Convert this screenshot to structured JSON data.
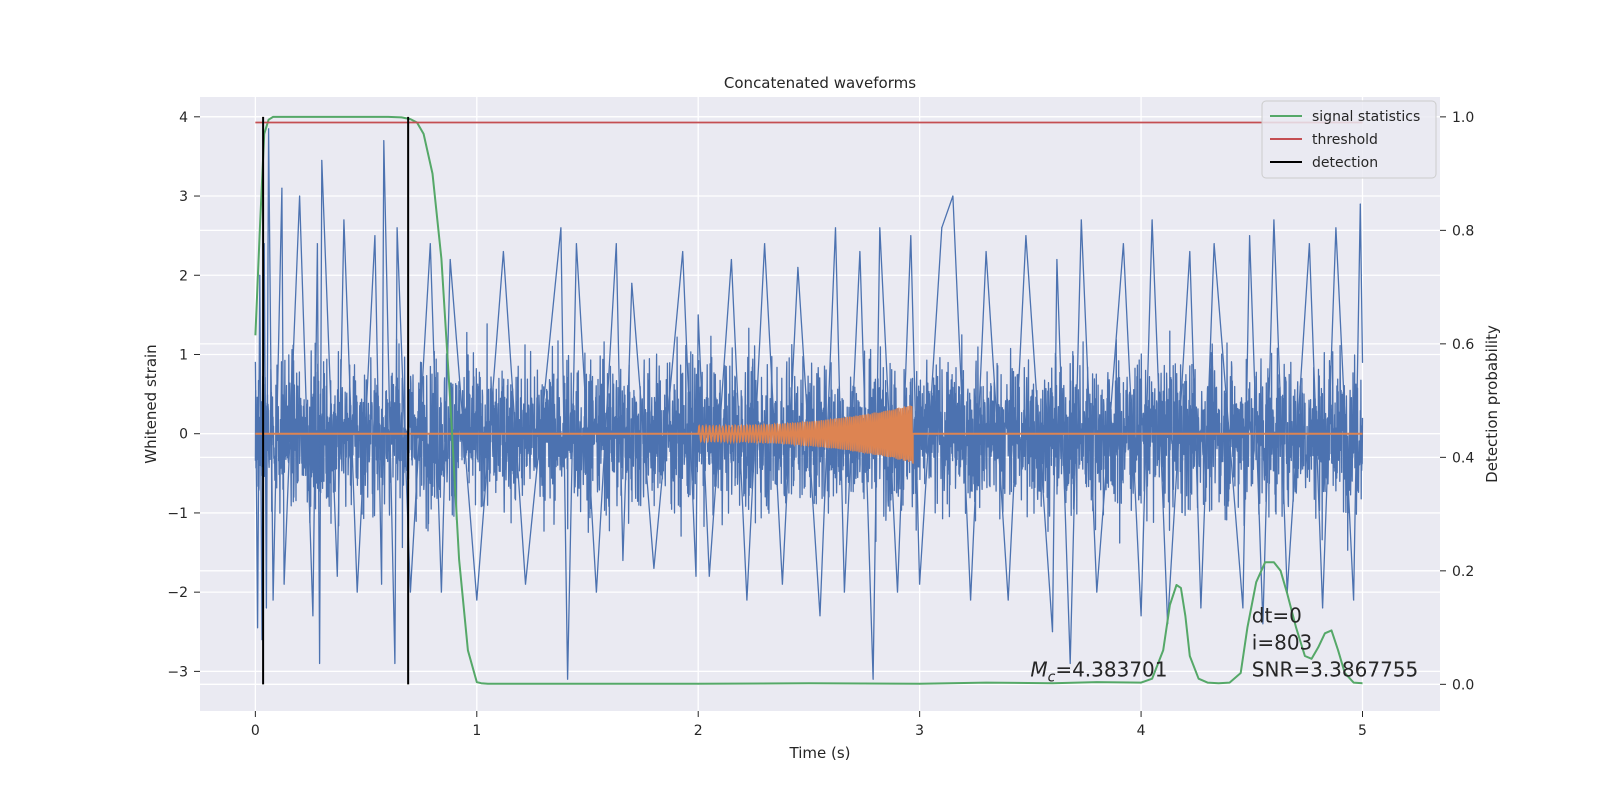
{
  "chart_data": {
    "type": "line",
    "title": "Concatenated waveforms",
    "xlabel": "Time (s)",
    "ylabel": "Whitened strain",
    "ylabel_right": "Detection probability",
    "xlim": [
      -0.25,
      5.35
    ],
    "ylim": [
      -3.5,
      4.25
    ],
    "ylim_right": [
      -0.047,
      1.035
    ],
    "x_ticks": [
      0,
      1,
      2,
      3,
      4,
      5
    ],
    "x_tick_labels": [
      "0",
      "1",
      "2",
      "3",
      "4",
      "5"
    ],
    "y_ticks": [
      -3,
      -2,
      -1,
      0,
      1,
      2,
      3,
      4
    ],
    "y_tick_labels": [
      "−3",
      "−2",
      "−1",
      "0",
      "1",
      "2",
      "3",
      "4"
    ],
    "y_right_ticks": [
      0.0,
      0.2,
      0.4,
      0.6,
      0.8,
      1.0
    ],
    "y_right_tick_labels": [
      "0.0",
      "0.2",
      "0.4",
      "0.6",
      "0.8",
      "1.0"
    ],
    "grid": true,
    "legend_position": "top-right",
    "series": [
      {
        "name": "",
        "axis": "left",
        "color": "#4c72b0",
        "kind": "noise",
        "x_range": [
          0,
          5
        ],
        "points": [
          [
            0.0,
            0.9
          ],
          [
            0.01,
            -2.45
          ],
          [
            0.02,
            2.0
          ],
          [
            0.03,
            -2.6
          ],
          [
            0.04,
            2.4
          ],
          [
            0.05,
            -2.2
          ],
          [
            0.06,
            3.85
          ],
          [
            0.08,
            -2.1
          ],
          [
            0.12,
            3.1
          ],
          [
            0.13,
            -1.9
          ],
          [
            0.2,
            3.0
          ],
          [
            0.26,
            -2.3
          ],
          [
            0.28,
            2.4
          ],
          [
            0.29,
            -2.9
          ],
          [
            0.3,
            3.45
          ],
          [
            0.37,
            -1.8
          ],
          [
            0.4,
            2.7
          ],
          [
            0.46,
            -2.0
          ],
          [
            0.54,
            2.5
          ],
          [
            0.57,
            -1.9
          ],
          [
            0.58,
            3.7
          ],
          [
            0.63,
            -2.9
          ],
          [
            0.64,
            2.6
          ],
          [
            0.7,
            -2.0
          ],
          [
            0.79,
            2.4
          ],
          [
            0.84,
            -2.0
          ],
          [
            0.88,
            2.2
          ],
          [
            1.0,
            -2.1
          ],
          [
            1.12,
            2.3
          ],
          [
            1.22,
            -1.9
          ],
          [
            1.38,
            2.6
          ],
          [
            1.41,
            -3.1
          ],
          [
            1.45,
            2.4
          ],
          [
            1.54,
            -2.0
          ],
          [
            1.63,
            2.4
          ],
          [
            1.66,
            -1.6
          ],
          [
            1.7,
            1.9
          ],
          [
            1.8,
            -1.7
          ],
          [
            1.93,
            2.3
          ],
          [
            1.99,
            -1.8
          ],
          [
            2.0,
            1.5
          ],
          [
            2.05,
            -1.8
          ],
          [
            2.15,
            2.2
          ],
          [
            2.22,
            -2.1
          ],
          [
            2.3,
            2.4
          ],
          [
            2.38,
            -1.9
          ],
          [
            2.45,
            2.1
          ],
          [
            2.55,
            -2.3
          ],
          [
            2.62,
            2.6
          ],
          [
            2.66,
            -2.0
          ],
          [
            2.73,
            2.3
          ],
          [
            2.79,
            -3.1
          ],
          [
            2.82,
            2.6
          ],
          [
            2.9,
            -2.0
          ],
          [
            2.96,
            2.5
          ],
          [
            3.0,
            -1.9
          ],
          [
            3.1,
            2.6
          ],
          [
            3.15,
            3.0
          ],
          [
            3.23,
            -2.1
          ],
          [
            3.3,
            2.3
          ],
          [
            3.4,
            -2.1
          ],
          [
            3.48,
            2.5
          ],
          [
            3.6,
            -2.5
          ],
          [
            3.62,
            2.2
          ],
          [
            3.68,
            -2.9
          ],
          [
            3.73,
            2.7
          ],
          [
            3.8,
            -2.0
          ],
          [
            3.92,
            2.4
          ],
          [
            4.0,
            -2.3
          ],
          [
            4.05,
            2.7
          ],
          [
            4.12,
            -2.4
          ],
          [
            4.22,
            2.3
          ],
          [
            4.27,
            -2.2
          ],
          [
            4.33,
            2.4
          ],
          [
            4.46,
            -2.2
          ],
          [
            4.49,
            2.5
          ],
          [
            4.55,
            -2.4
          ],
          [
            4.6,
            2.7
          ],
          [
            4.66,
            -2.0
          ],
          [
            4.76,
            2.4
          ],
          [
            4.82,
            -2.2
          ],
          [
            4.88,
            2.6
          ],
          [
            4.96,
            -2.1
          ],
          [
            4.99,
            2.9
          ],
          [
            5.0,
            0.9
          ]
        ]
      },
      {
        "name": "",
        "axis": "left",
        "color": "#dd8452",
        "kind": "chirp",
        "x_range": [
          0,
          5
        ],
        "chirp_x_range": [
          2.0,
          2.97
        ],
        "chirp_start_amplitude": 0.1,
        "chirp_peak_amplitude": 0.37,
        "chirp_end_value": -0.38
      },
      {
        "name": "signal statistics",
        "axis": "right",
        "color": "#55a868",
        "kind": "line",
        "x": [
          0.0,
          0.02,
          0.04,
          0.06,
          0.08,
          0.1,
          0.3,
          0.5,
          0.6,
          0.66,
          0.7,
          0.73,
          0.76,
          0.8,
          0.84,
          0.88,
          0.92,
          0.96,
          1.0,
          1.02,
          1.05,
          2.0,
          2.5,
          3.0,
          3.3,
          3.6,
          3.8,
          4.0,
          4.05,
          4.1,
          4.13,
          4.16,
          4.18,
          4.2,
          4.22,
          4.26,
          4.3,
          4.35,
          4.4,
          4.45,
          4.48,
          4.52,
          4.56,
          4.6,
          4.63,
          4.66,
          4.7,
          4.74,
          4.77,
          4.8,
          4.83,
          4.86,
          4.89,
          4.92,
          4.96,
          5.0
        ],
        "values": [
          0.615,
          0.8,
          0.97,
          0.995,
          1.0,
          1.0,
          1.0,
          1.0,
          1.0,
          0.999,
          0.996,
          0.99,
          0.97,
          0.9,
          0.75,
          0.5,
          0.22,
          0.06,
          0.004,
          0.002,
          0.001,
          0.001,
          0.002,
          0.001,
          0.003,
          0.002,
          0.004,
          0.003,
          0.01,
          0.06,
          0.14,
          0.175,
          0.17,
          0.12,
          0.05,
          0.01,
          0.003,
          0.002,
          0.003,
          0.02,
          0.1,
          0.18,
          0.215,
          0.215,
          0.2,
          0.16,
          0.1,
          0.05,
          0.045,
          0.065,
          0.09,
          0.095,
          0.06,
          0.02,
          0.003,
          0.002
        ]
      },
      {
        "name": "threshold",
        "axis": "right",
        "color": "#c44e52",
        "kind": "hline",
        "x": [
          0,
          5
        ],
        "value": 0.99
      },
      {
        "name": "detection",
        "axis": "right",
        "color": "#000000",
        "kind": "vlines",
        "x": [
          0.035,
          0.69
        ],
        "from": 0.0,
        "to": 1.0
      }
    ],
    "annotations": [
      {
        "text_before_sub": "M",
        "sub": "c",
        "text_after_sub": "=4.383701",
        "x": 3.5,
        "y": 0.01
      },
      {
        "lines": [
          "dt=0",
          "i=803",
          "SNR=3.3867755"
        ],
        "x": 4.5,
        "y": 0.01
      }
    ]
  }
}
